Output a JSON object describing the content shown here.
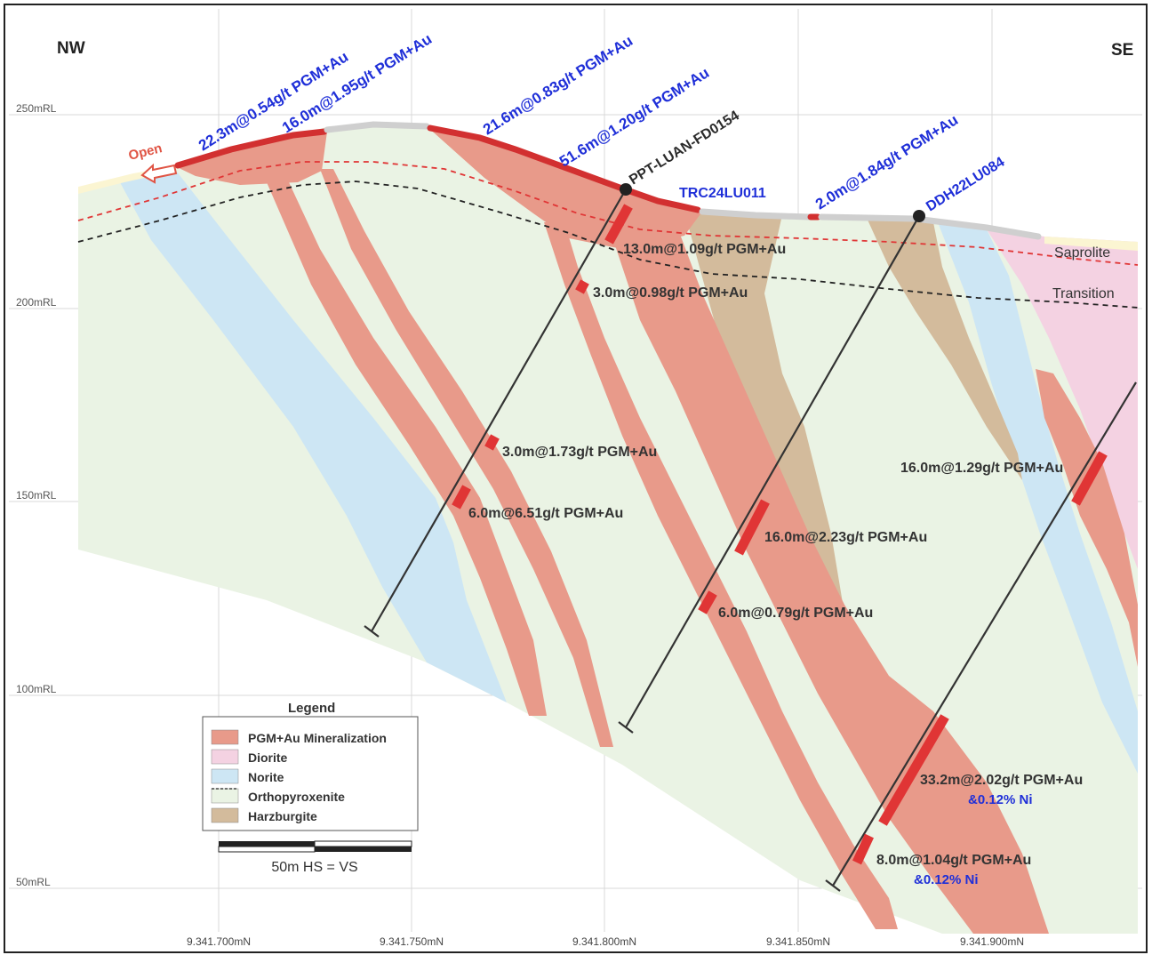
{
  "orientation": {
    "left": "NW",
    "right": "SE"
  },
  "elevation_labels": [
    "250mRL",
    "200mRL",
    "150mRL",
    "100mRL",
    "50mRL"
  ],
  "northing_labels": [
    "9.341.700mN",
    "9.341.750mN",
    "9.341.800mN",
    "9.341.850mN",
    "9.341.900mN"
  ],
  "surface_intercepts": [
    "22.3m@0.54g/t PGM+Au",
    "16.0m@1.95g/t PGM+Au",
    "21.6m@0.83g/t PGM+Au",
    "51.6m@1.20g/t PGM+Au",
    "2.0m@1.84g/t PGM+Au"
  ],
  "drillholes": [
    "PPT-LUAN-FD0154",
    "TRC24LU011",
    "DDH22LU084"
  ],
  "downhole_intercepts": [
    {
      "text": "13.0m@1.09g/t PGM+Au"
    },
    {
      "text": "3.0m@0.98g/t PGM+Au"
    },
    {
      "text": "3.0m@1.73g/t PGM+Au"
    },
    {
      "text": "6.0m@6.51g/t PGM+Au"
    },
    {
      "text": "16.0m@2.23g/t PGM+Au"
    },
    {
      "text": "6.0m@0.79g/t PGM+Au"
    },
    {
      "text": "16.0m@1.29g/t PGM+Au"
    },
    {
      "text": "33.2m@2.02g/t PGM+Au",
      "sub": "&0.12% Ni"
    },
    {
      "text": "8.0m@1.04g/t PGM+Au",
      "sub": "&0.12% Ni"
    }
  ],
  "weathering_labels": [
    "Saprolite",
    "Transition"
  ],
  "open_label": "Open",
  "legend": {
    "title": "Legend",
    "items": [
      {
        "label": "PGM+Au Mineralization",
        "color": "#e89a8a"
      },
      {
        "label": "Diorite",
        "color": "#f4d2e2"
      },
      {
        "label": "Norite",
        "color": "#cde6f4"
      },
      {
        "label": "Orthopyroxenite",
        "color": "#eaf3e4"
      },
      {
        "label": "Harzburgite",
        "color": "#d3bb9c"
      }
    ]
  },
  "scale_bar": {
    "label": "50m  HS = VS"
  },
  "colors": {
    "mineralization": "#e89a8a",
    "diorite": "#f4d2e2",
    "norite": "#cde6f4",
    "orthopyroxenite": "#eaf3e4",
    "harzburgite": "#d3bb9c",
    "intercept": "#e03535",
    "blue_text": "#1f2fd8"
  }
}
